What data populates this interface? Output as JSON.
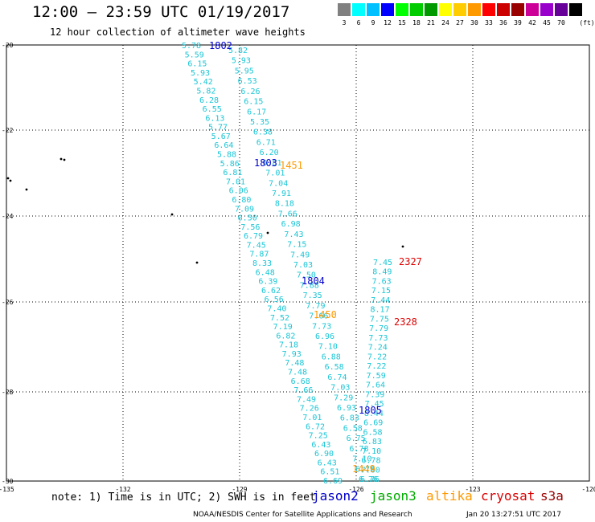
{
  "header": {
    "title": "12:00 — 23:59 UTC 01/19/2017",
    "subtitle": "12 hour collection of altimeter wave heights"
  },
  "color_scale": {
    "unit": "(ft)",
    "swatches": [
      {
        "color": "#808080",
        "label": "3"
      },
      {
        "color": "#00ffff",
        "label": "6"
      },
      {
        "color": "#00c0ff",
        "label": "9"
      },
      {
        "color": "#0000ff",
        "label": "12"
      },
      {
        "color": "#00ff00",
        "label": "15"
      },
      {
        "color": "#00cc00",
        "label": "18"
      },
      {
        "color": "#009900",
        "label": "21"
      },
      {
        "color": "#ffff00",
        "label": "24"
      },
      {
        "color": "#ffcc00",
        "label": "27"
      },
      {
        "color": "#ff9900",
        "label": "30"
      },
      {
        "color": "#ff0000",
        "label": "33"
      },
      {
        "color": "#cc0000",
        "label": "36"
      },
      {
        "color": "#990000",
        "label": "39"
      },
      {
        "color": "#cc0099",
        "label": "42"
      },
      {
        "color": "#9900cc",
        "label": "45"
      },
      {
        "color": "#660099",
        "label": "70"
      },
      {
        "color": "#000000",
        "label": ""
      }
    ]
  },
  "axes": {
    "lat_labels": [
      "-20",
      "-22",
      "-24",
      "-26",
      "-28",
      "-30"
    ],
    "lon_labels": [
      "-135",
      "-132",
      "-129",
      "-126",
      "-123",
      "-120"
    ]
  },
  "tracks": [
    {
      "name": "left",
      "color": "#1ac6d6",
      "values": [
        "5.78",
        "5.59",
        "6.15",
        "5.93",
        "5.42",
        "5.82",
        "6.28",
        "6.55",
        "6.13",
        "5.77",
        "5.67",
        "6.64",
        "5.88",
        "5.86",
        "6.81",
        "7.01",
        "6.06",
        "6.80",
        "7.09",
        "6.50",
        "7.56",
        "6.79",
        "7.45",
        "7.87",
        "8.33",
        "6.48",
        "6.39",
        "6.62",
        "6.56",
        "7.40",
        "7.52",
        "7.19",
        "6.82",
        "7.18",
        "7.93",
        "7.48",
        "7.48",
        "6.68",
        "7.66",
        "7.49",
        "7.26",
        "7.01",
        "6.72",
        "7.25",
        "6.43",
        "6.90",
        "6.43",
        "6.51",
        "6.69"
      ]
    },
    {
      "name": "middle",
      "color": "#1ac6d6",
      "values": [
        "5.82",
        "5.93",
        "5.95",
        "6.53",
        "6.26",
        "6.15",
        "6.17",
        "5.35",
        "6.38",
        "6.71",
        "6.20",
        "6.81",
        "7.01",
        "7.04",
        "7.91",
        "8.18",
        "7.66",
        "6.98",
        "7.43",
        "7.15",
        "7.49",
        "7.03",
        "7.50",
        "7.88",
        "7.35",
        "7.79",
        "7.66",
        "7.73",
        "6.96",
        "7.10",
        "6.88",
        "6.58",
        "6.74",
        "7.03",
        "7.29",
        "6.93",
        "6.83",
        "6.58",
        "6.75",
        "6.78",
        "7.10",
        "6.78",
        "6.76"
      ]
    },
    {
      "name": "right",
      "color": "#1ac6d6",
      "values": [
        "7.45",
        "8.49",
        "7.63",
        "7.15",
        "7.44",
        "8.17",
        "7.75",
        "7.79",
        "7.73",
        "7.24",
        "7.22",
        "7.22",
        "7.59",
        "7.64",
        "7.39",
        "7.45",
        "8.44",
        "6.69",
        "6.58",
        "6.83",
        "7.10",
        "6.78",
        "7.00",
        "6.76"
      ]
    }
  ],
  "pass_labels": [
    {
      "text": "1802",
      "color": "#0000cc"
    },
    {
      "text": "1803",
      "color": "#0000cc"
    },
    {
      "text": "1451",
      "color": "#ff9900"
    },
    {
      "text": "1804",
      "color": "#0000cc"
    },
    {
      "text": "1450",
      "color": "#ff9900"
    },
    {
      "text": "2327",
      "color": "#dd0000"
    },
    {
      "text": "2328",
      "color": "#dd0000"
    },
    {
      "text": "1805",
      "color": "#0000cc"
    },
    {
      "text": "1449",
      "color": "#ff9900"
    }
  ],
  "footer": {
    "note": "note: 1) Time is in UTC; 2) SWH is in feet",
    "satellites": [
      {
        "name": "jason2",
        "color": "#0000cc"
      },
      {
        "name": "jason3",
        "color": "#00aa00"
      },
      {
        "name": "altika",
        "color": "#ff9900"
      },
      {
        "name": "cryosat",
        "color": "#dd0000"
      },
      {
        "name": "s3a",
        "color": "#990000"
      }
    ],
    "credit": "NOAA/NESDIS Center for Satellite Applications and Research",
    "timestamp": "Jan 20 13:27:51 UTC 2017"
  }
}
